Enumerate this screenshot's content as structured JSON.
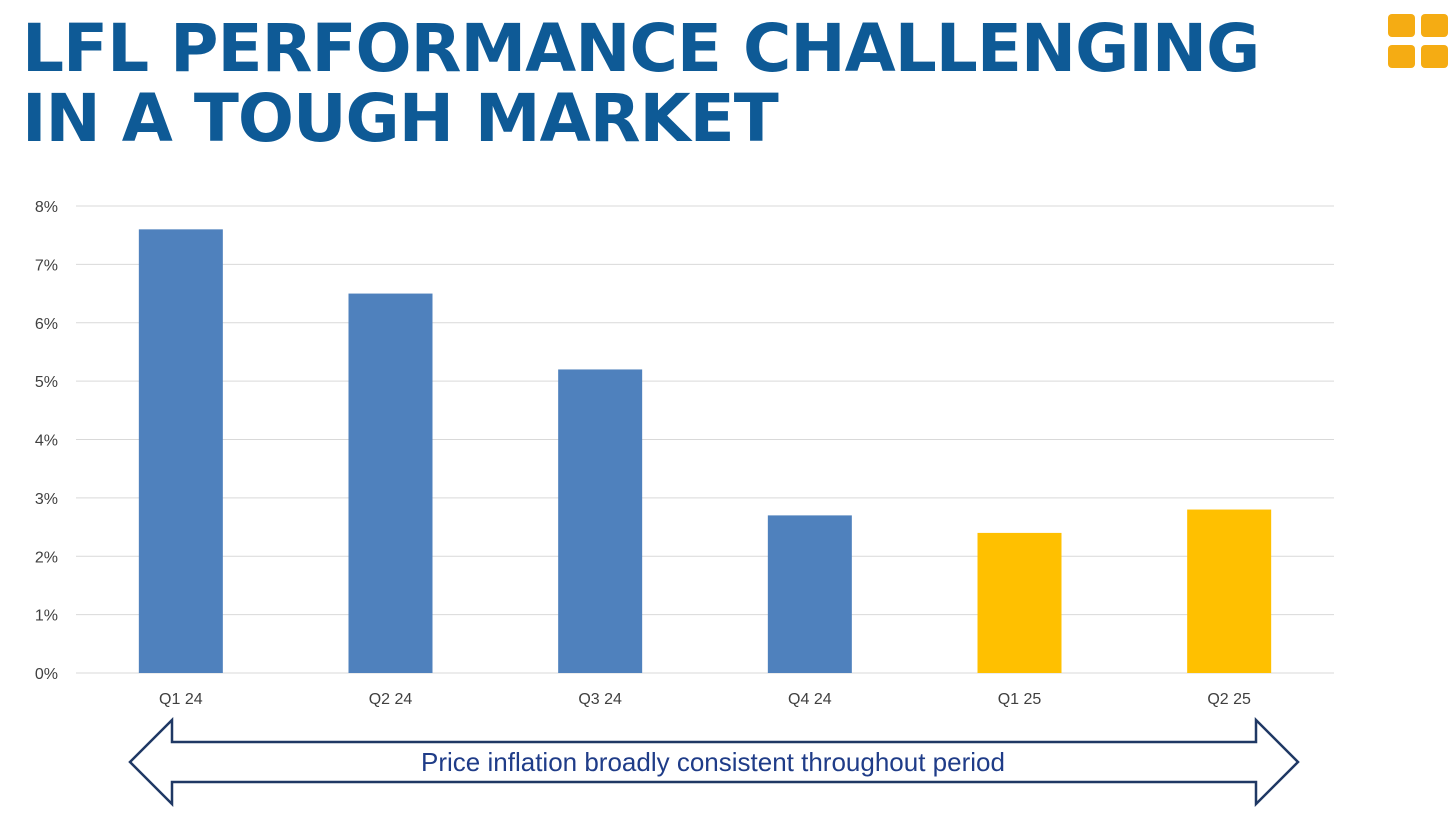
{
  "title_line1": "LFL PERFORMANCE CHALLENGING",
  "title_line2": "IN A TOUGH MARKET",
  "logo_icon": "four-squares-logo-icon",
  "colors": {
    "title": "#0e5a96",
    "bar_actual": "#4f81bd",
    "bar_highlight": "#ffc000",
    "logo": "#f5ac13",
    "gridline": "#d9d9d9",
    "axis_text": "#404040",
    "arrow_stroke": "#1f3864",
    "banner_text": "#1f3c88"
  },
  "chart_data": {
    "type": "bar",
    "title": "",
    "xlabel": "",
    "ylabel": "",
    "categories": [
      "Q1 24",
      "Q2 24",
      "Q3 24",
      "Q4 24",
      "Q1 25",
      "Q2 25"
    ],
    "values": [
      7.6,
      6.5,
      5.2,
      2.7,
      2.4,
      2.8
    ],
    "bar_color_keys": [
      "bar_actual",
      "bar_actual",
      "bar_actual",
      "bar_actual",
      "bar_highlight",
      "bar_highlight"
    ],
    "ylim": [
      0,
      8
    ],
    "yticks": [
      0,
      1,
      2,
      3,
      4,
      5,
      6,
      7,
      8
    ],
    "ytick_labels": [
      "0%",
      "1%",
      "2%",
      "3%",
      "4%",
      "5%",
      "6%",
      "7%",
      "8%"
    ],
    "grid": true,
    "legend": "none"
  },
  "banner_text": "Price inflation broadly consistent throughout period"
}
